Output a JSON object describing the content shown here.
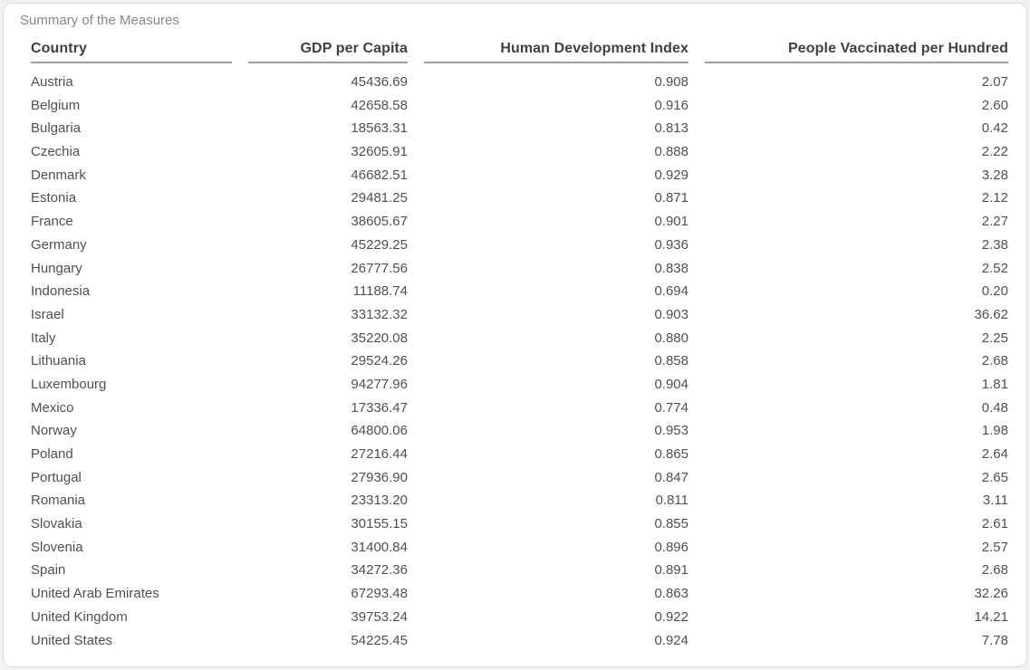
{
  "title": "Summary of the Measures",
  "colors": {
    "page_bg": "#f1f2f3",
    "card_bg": "#ffffff",
    "card_border": "#d9dcde",
    "title_text": "#83888c",
    "header_text": "#3e4245",
    "header_rule": "#9ba0a3",
    "cell_text": "#4c5155"
  },
  "chart_data": {
    "type": "table",
    "title": "Summary of the Measures",
    "columns": [
      "Country",
      "GDP per Capita",
      "Human Development Index",
      "People Vaccinated per Hundred"
    ],
    "column_alignment": [
      "left",
      "right",
      "right",
      "right"
    ],
    "rows": [
      [
        "Austria",
        "45436.69",
        "0.908",
        "2.07"
      ],
      [
        "Belgium",
        "42658.58",
        "0.916",
        "2.60"
      ],
      [
        "Bulgaria",
        "18563.31",
        "0.813",
        "0.42"
      ],
      [
        "Czechia",
        "32605.91",
        "0.888",
        "2.22"
      ],
      [
        "Denmark",
        "46682.51",
        "0.929",
        "3.28"
      ],
      [
        "Estonia",
        "29481.25",
        "0.871",
        "2.12"
      ],
      [
        "France",
        "38605.67",
        "0.901",
        "2.27"
      ],
      [
        "Germany",
        "45229.25",
        "0.936",
        "2.38"
      ],
      [
        "Hungary",
        "26777.56",
        "0.838",
        "2.52"
      ],
      [
        "Indonesia",
        "11188.74",
        "0.694",
        "0.20"
      ],
      [
        "Israel",
        "33132.32",
        "0.903",
        "36.62"
      ],
      [
        "Italy",
        "35220.08",
        "0.880",
        "2.25"
      ],
      [
        "Lithuania",
        "29524.26",
        "0.858",
        "2.68"
      ],
      [
        "Luxembourg",
        "94277.96",
        "0.904",
        "1.81"
      ],
      [
        "Mexico",
        "17336.47",
        "0.774",
        "0.48"
      ],
      [
        "Norway",
        "64800.06",
        "0.953",
        "1.98"
      ],
      [
        "Poland",
        "27216.44",
        "0.865",
        "2.64"
      ],
      [
        "Portugal",
        "27936.90",
        "0.847",
        "2.65"
      ],
      [
        "Romania",
        "23313.20",
        "0.811",
        "3.11"
      ],
      [
        "Slovakia",
        "30155.15",
        "0.855",
        "2.61"
      ],
      [
        "Slovenia",
        "31400.84",
        "0.896",
        "2.57"
      ],
      [
        "Spain",
        "34272.36",
        "0.891",
        "2.68"
      ],
      [
        "United Arab Emirates",
        "67293.48",
        "0.863",
        "32.26"
      ],
      [
        "United Kingdom",
        "39753.24",
        "0.922",
        "14.21"
      ],
      [
        "United States",
        "54225.45",
        "0.924",
        "7.78"
      ]
    ]
  }
}
